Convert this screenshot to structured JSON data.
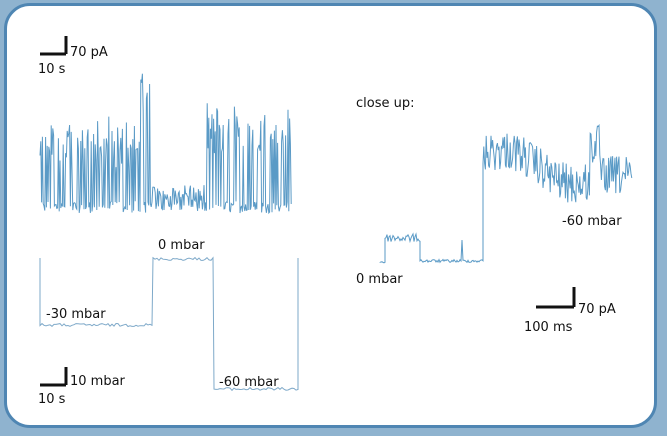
{
  "colors": {
    "trace": "#5a9ac6",
    "pressure_trace": "#7ea9c9",
    "scale_bar": "#111111",
    "frame_border": "#4f86b3",
    "background": "#8fb3cf"
  },
  "chart_data": [
    {
      "type": "line",
      "panel": "current-trace-overview",
      "scale_bar": {
        "vertical_label": "70 pA",
        "horizontal_label": "10 s"
      }
    },
    {
      "type": "line",
      "panel": "pressure-protocol",
      "levels": [
        "-30 mbar",
        "0 mbar",
        "-60 mbar"
      ],
      "scale_bar": {
        "vertical_label": "10 mbar",
        "horizontal_label": "10 s"
      }
    },
    {
      "type": "line",
      "panel": "close-up-trace",
      "title": "close up:",
      "annotations": [
        "0 mbar",
        "-60 mbar"
      ],
      "scale_bar": {
        "vertical_label": "70 pA",
        "horizontal_label": "100 ms"
      }
    }
  ]
}
